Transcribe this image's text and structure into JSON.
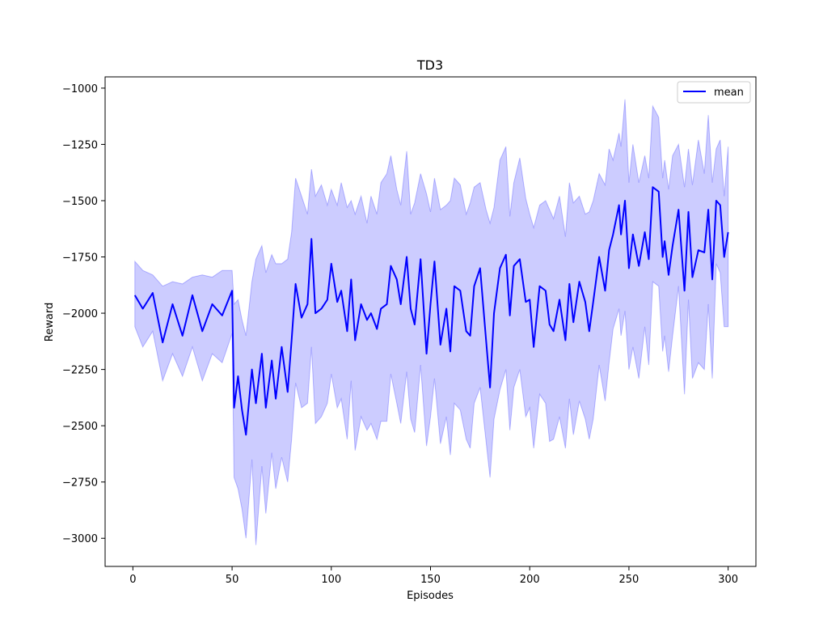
{
  "chart_data": {
    "type": "line",
    "title": "TD3",
    "xlabel": "Episodes",
    "ylabel": "Reward",
    "xlim": [
      -14,
      314
    ],
    "ylim": [
      -3125,
      -950
    ],
    "xticks": [
      0,
      50,
      100,
      150,
      200,
      250,
      300
    ],
    "yticks": [
      -3000,
      -2750,
      -2500,
      -2250,
      -2000,
      -1750,
      -1500,
      -1250,
      -1000
    ],
    "xtick_labels": [
      "0",
      "50",
      "100",
      "150",
      "200",
      "250",
      "300"
    ],
    "ytick_labels": [
      "−3000",
      "−2750",
      "−2500",
      "−2250",
      "−2000",
      "−1750",
      "−1500",
      "−1250",
      "−1000"
    ],
    "grid": false,
    "legend": {
      "position": "top-right",
      "entries": [
        "mean"
      ]
    },
    "colors": {
      "line": "#0000ff",
      "band": "#0000ff",
      "band_opacity": 0.2
    },
    "series": [
      {
        "name": "mean",
        "x": [
          1,
          5,
          10,
          15,
          20,
          25,
          30,
          35,
          40,
          45,
          50,
          51,
          53,
          55,
          57,
          60,
          62,
          65,
          67,
          70,
          72,
          75,
          78,
          80,
          82,
          85,
          88,
          90,
          92,
          95,
          98,
          100,
          103,
          105,
          108,
          110,
          112,
          115,
          118,
          120,
          123,
          125,
          128,
          130,
          133,
          135,
          138,
          140,
          142,
          145,
          148,
          150,
          152,
          155,
          158,
          160,
          162,
          165,
          168,
          170,
          172,
          175,
          178,
          180,
          182,
          185,
          188,
          190,
          192,
          195,
          198,
          200,
          202,
          205,
          208,
          210,
          212,
          215,
          218,
          220,
          222,
          225,
          228,
          230,
          232,
          235,
          238,
          240,
          242,
          245,
          246,
          248,
          250,
          252,
          255,
          258,
          260,
          262,
          265,
          267,
          268,
          270,
          272,
          275,
          278,
          280,
          282,
          285,
          288,
          290,
          292,
          294,
          296,
          298,
          300
        ],
        "values": [
          -1920,
          -1980,
          -1910,
          -2130,
          -1960,
          -2100,
          -1920,
          -2080,
          -1960,
          -2010,
          -1900,
          -2420,
          -2280,
          -2430,
          -2540,
          -2250,
          -2400,
          -2180,
          -2420,
          -2210,
          -2380,
          -2150,
          -2350,
          -2120,
          -1870,
          -2020,
          -1960,
          -1670,
          -2000,
          -1980,
          -1940,
          -1780,
          -1950,
          -1900,
          -2080,
          -1850,
          -2120,
          -1960,
          -2030,
          -2000,
          -2070,
          -1980,
          -1960,
          -1790,
          -1850,
          -1960,
          -1750,
          -1980,
          -2050,
          -1760,
          -2180,
          -1960,
          -1770,
          -2140,
          -1980,
          -2170,
          -1880,
          -1900,
          -2080,
          -2100,
          -1880,
          -1800,
          -2120,
          -2330,
          -2000,
          -1800,
          -1740,
          -2010,
          -1790,
          -1760,
          -1950,
          -1940,
          -2150,
          -1880,
          -1900,
          -2050,
          -2080,
          -1940,
          -2120,
          -1870,
          -2040,
          -1860,
          -1950,
          -2080,
          -1950,
          -1750,
          -1900,
          -1720,
          -1650,
          -1520,
          -1650,
          -1500,
          -1800,
          -1650,
          -1790,
          -1640,
          -1760,
          -1440,
          -1460,
          -1750,
          -1680,
          -1830,
          -1700,
          -1540,
          -1900,
          -1550,
          -1840,
          -1720,
          -1730,
          -1540,
          -1850,
          -1500,
          -1520,
          -1750,
          -1640
        ],
        "upper": [
          -1770,
          -1810,
          -1830,
          -1880,
          -1860,
          -1870,
          -1840,
          -1830,
          -1840,
          -1810,
          -1810,
          -1960,
          -1940,
          -2030,
          -2100,
          -1860,
          -1760,
          -1700,
          -1820,
          -1740,
          -1780,
          -1780,
          -1760,
          -1640,
          -1400,
          -1480,
          -1560,
          -1360,
          -1480,
          -1430,
          -1520,
          -1450,
          -1520,
          -1420,
          -1530,
          -1500,
          -1560,
          -1480,
          -1600,
          -1480,
          -1560,
          -1420,
          -1380,
          -1300,
          -1450,
          -1520,
          -1280,
          -1560,
          -1510,
          -1380,
          -1470,
          -1550,
          -1400,
          -1540,
          -1520,
          -1500,
          -1400,
          -1430,
          -1560,
          -1510,
          -1440,
          -1420,
          -1540,
          -1600,
          -1530,
          -1320,
          -1260,
          -1570,
          -1420,
          -1310,
          -1490,
          -1560,
          -1620,
          -1520,
          -1500,
          -1540,
          -1580,
          -1480,
          -1660,
          -1420,
          -1510,
          -1480,
          -1560,
          -1550,
          -1500,
          -1380,
          -1430,
          -1270,
          -1320,
          -1200,
          -1260,
          -1050,
          -1420,
          -1250,
          -1420,
          -1300,
          -1400,
          -1080,
          -1130,
          -1400,
          -1320,
          -1450,
          -1300,
          -1250,
          -1440,
          -1270,
          -1430,
          -1230,
          -1380,
          -1120,
          -1420,
          -1270,
          -1230,
          -1480,
          -1260
        ],
        "lower": [
          -2060,
          -2150,
          -2080,
          -2300,
          -2180,
          -2280,
          -2150,
          -2300,
          -2180,
          -2220,
          -2090,
          -2730,
          -2780,
          -2870,
          -3000,
          -2650,
          -3030,
          -2680,
          -2890,
          -2620,
          -2780,
          -2640,
          -2750,
          -2560,
          -2310,
          -2420,
          -2400,
          -2150,
          -2490,
          -2460,
          -2400,
          -2270,
          -2420,
          -2380,
          -2560,
          -2300,
          -2610,
          -2460,
          -2520,
          -2490,
          -2560,
          -2480,
          -2480,
          -2270,
          -2400,
          -2490,
          -2260,
          -2470,
          -2530,
          -2230,
          -2590,
          -2460,
          -2290,
          -2580,
          -2460,
          -2630,
          -2400,
          -2430,
          -2560,
          -2600,
          -2400,
          -2330,
          -2570,
          -2730,
          -2470,
          -2340,
          -2250,
          -2520,
          -2330,
          -2250,
          -2460,
          -2420,
          -2600,
          -2360,
          -2400,
          -2570,
          -2560,
          -2460,
          -2600,
          -2380,
          -2540,
          -2390,
          -2470,
          -2560,
          -2470,
          -2230,
          -2390,
          -2220,
          -2070,
          -1980,
          -2100,
          -1990,
          -2250,
          -2150,
          -2290,
          -2060,
          -2230,
          -1860,
          -1880,
          -2170,
          -2100,
          -2260,
          -2100,
          -1880,
          -2360,
          -1940,
          -2290,
          -2220,
          -2250,
          -1960,
          -2290,
          -1780,
          -1820,
          -2060,
          -2060
        ]
      }
    ]
  }
}
